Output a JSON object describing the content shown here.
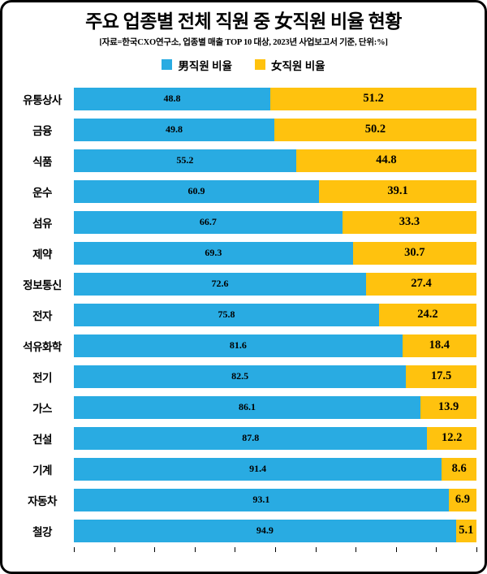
{
  "page": {
    "background": "#ffffff",
    "border_color": "#000000"
  },
  "chart_data": {
    "type": "bar",
    "orientation": "horizontal",
    "stacked": true,
    "stacked_percent": true,
    "title": "주요 업종별 전체 직원 중 女직원 비율 현황",
    "subtitle": "[자료=한국CXO연구소, 업종별 매출 TOP 10 대상, 2023년 사업보고서 기준, 단위:%]",
    "categories": [
      "유통상사",
      "금융",
      "식품",
      "운수",
      "섬유",
      "제약",
      "정보통신",
      "전자",
      "석유화학",
      "전기",
      "가스",
      "건설",
      "기계",
      "자동차",
      "철강"
    ],
    "series": [
      {
        "name": "男직원 비율",
        "color": "#29ABE2",
        "values": [
          48.8,
          49.8,
          55.2,
          60.9,
          66.7,
          69.3,
          72.6,
          75.8,
          81.6,
          82.5,
          86.1,
          87.8,
          91.4,
          93.1,
          94.9
        ]
      },
      {
        "name": "女직원 비율",
        "color": "#FFC20E",
        "values": [
          51.2,
          50.2,
          44.8,
          39.1,
          33.3,
          30.7,
          27.4,
          24.2,
          18.4,
          17.5,
          13.9,
          12.2,
          8.6,
          6.9,
          5.1
        ]
      }
    ],
    "xlim": [
      0,
      100
    ],
    "x_ticks": [
      0,
      10,
      20,
      30,
      40,
      50,
      60,
      70,
      80,
      90,
      100
    ],
    "unit": "%",
    "legend_position": "top",
    "grid": false
  }
}
